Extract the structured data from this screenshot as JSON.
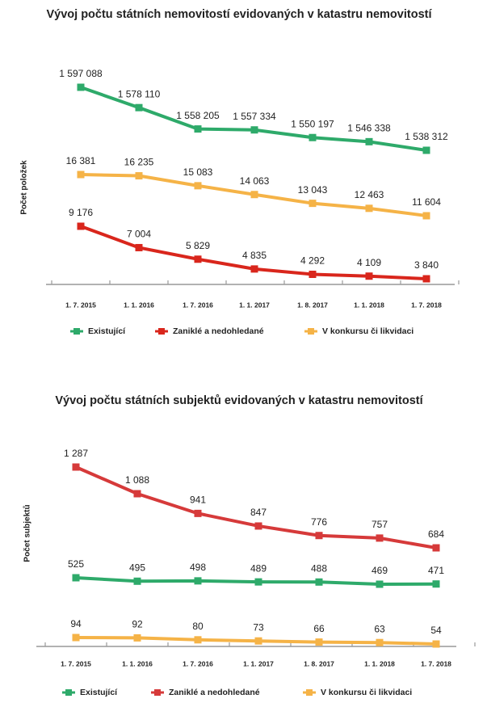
{
  "chart_data": [
    {
      "type": "line",
      "title": "Vývoj počtu státních nemovitostí evidovaných v katastru nemovitostí",
      "y_label": "Počet položek",
      "categories": [
        "1. 7. 2015",
        "1. 1. 2016",
        "1. 7. 2016",
        "1. 1. 2017",
        "1. 8. 2017",
        "1. 1. 2018",
        "1. 7. 2018"
      ],
      "series": [
        {
          "name": "Existující",
          "color": "#2eaa6a",
          "values": [
            1597088,
            1578110,
            1558205,
            1557334,
            1550197,
            1546338,
            1538312
          ],
          "value_labels": [
            "1 597 088",
            "1 578 110",
            "1 558 205",
            "1 557 334",
            "1 550 197",
            "1 546 338",
            "1 538 312"
          ]
        },
        {
          "name": "Zaniklé a nedohledané",
          "color": "#d9261c",
          "values": [
            9176,
            7004,
            5829,
            4835,
            4292,
            4109,
            3840
          ],
          "value_labels": [
            "9 176",
            "7 004",
            "5 829",
            "4 835",
            "4 292",
            "4 109",
            "3 840"
          ]
        },
        {
          "name": "V konkursu či likvidaci",
          "color": "#f5b347",
          "values": [
            16381,
            16235,
            15083,
            14063,
            13043,
            12463,
            11604
          ],
          "value_labels": [
            "16 381",
            "16 235",
            "15 083",
            "14 063",
            "13 043",
            "12 463",
            "11 604"
          ]
        }
      ]
    },
    {
      "type": "line",
      "title": "Vývoj počtu státních subjektů evidovaných v katastru nemovitostí",
      "y_label": "Počet subjektů",
      "categories": [
        "1. 7. 2015",
        "1. 1. 2016",
        "1. 7. 2016",
        "1. 1. 2017",
        "1. 8. 2017",
        "1. 1. 2018",
        "1. 7. 2018"
      ],
      "series": [
        {
          "name": "Existující",
          "color": "#2eaa6a",
          "values": [
            525,
            495,
            498,
            489,
            488,
            469,
            471
          ]
        },
        {
          "name": "Zaniklé a nedohledané",
          "color": "#d63a3a",
          "values": [
            1287,
            1088,
            941,
            847,
            776,
            757,
            684
          ],
          "value_labels": [
            "1 287",
            "1 088",
            "941",
            "847",
            "776",
            "757",
            "684"
          ]
        },
        {
          "name": "V konkursu či likvidaci",
          "color": "#f5b347",
          "values": [
            94,
            92,
            80,
            73,
            66,
            63,
            54
          ]
        }
      ]
    }
  ]
}
